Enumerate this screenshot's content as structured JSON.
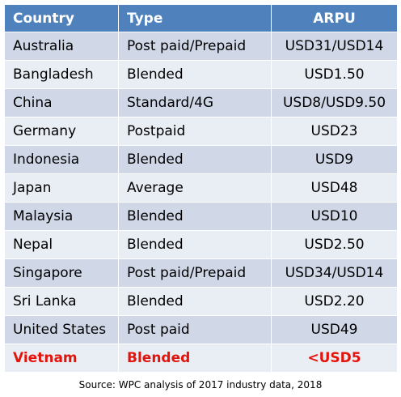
{
  "table": {
    "headers": {
      "country": "Country",
      "type": "Type",
      "arpu": "ARPU"
    },
    "rows": [
      {
        "country": "Australia",
        "type": "Post paid/Prepaid",
        "arpu": "USD31/USD14"
      },
      {
        "country": "Bangladesh",
        "type": "Blended",
        "arpu": "USD1.50"
      },
      {
        "country": "China",
        "type": "Standard/4G",
        "arpu": "USD8/USD9.50"
      },
      {
        "country": "Germany",
        "type": "Postpaid",
        "arpu": "USD23"
      },
      {
        "country": "Indonesia",
        "type": "Blended",
        "arpu": "USD9"
      },
      {
        "country": "Japan",
        "type": "Average",
        "arpu": "USD48"
      },
      {
        "country": "Malaysia",
        "type": "Blended",
        "arpu": "USD10"
      },
      {
        "country": "Nepal",
        "type": "Blended",
        "arpu": "USD2.50"
      },
      {
        "country": "Singapore",
        "type": "Post paid/Prepaid",
        "arpu": "USD34/USD14"
      },
      {
        "country": "Sri Lanka",
        "type": "Blended",
        "arpu": "USD2.20"
      },
      {
        "country": "United States",
        "type": "Post paid",
        "arpu": "USD49"
      },
      {
        "country": "Vietnam",
        "type": "Blended",
        "arpu": "<USD5",
        "highlight": true
      }
    ]
  },
  "colors": {
    "header_bg": "#4f81bd",
    "row_odd_bg": "#d0d8e8",
    "row_even_bg": "#e9edf4",
    "highlight_text": "#e3140b"
  },
  "source": "Source: WPC analysis of 2017  industry data, 2018"
}
